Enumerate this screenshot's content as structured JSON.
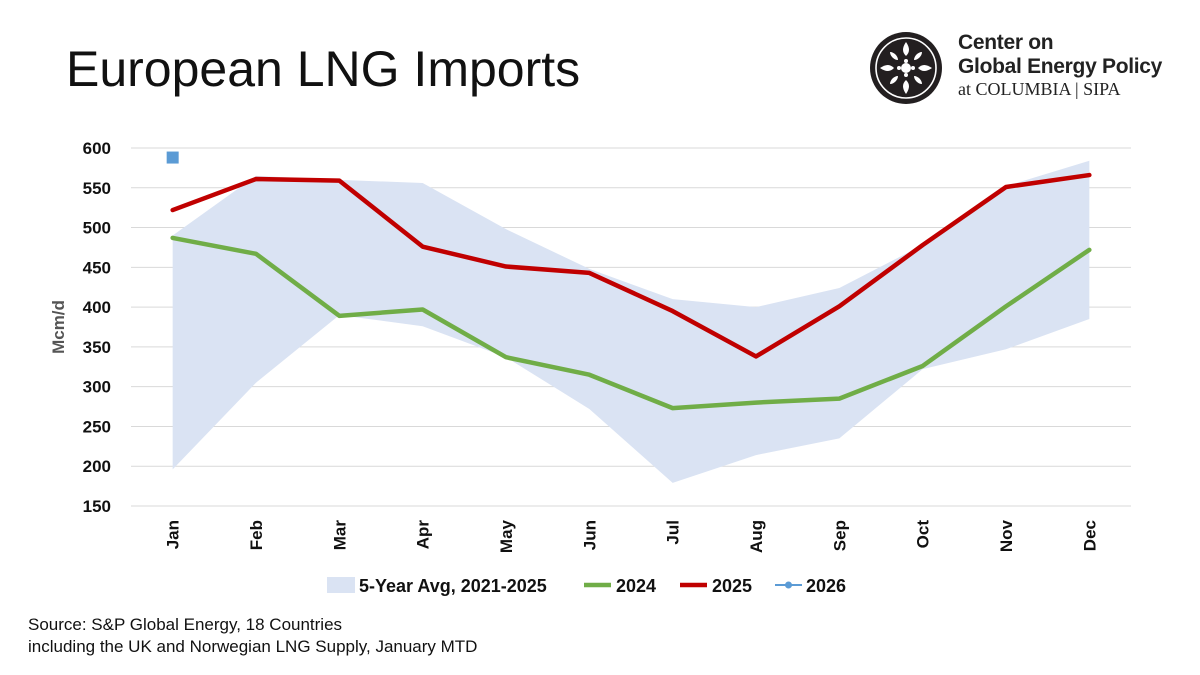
{
  "page": {
    "title": "European LNG Imports"
  },
  "logo": {
    "icon": "columbia-crown-emblem-icon",
    "line1": "Center on",
    "line2": "Global Energy Policy",
    "line3": "at COLUMBIA | SIPA"
  },
  "source": {
    "line1": "Source: S&P Global Energy, 18 Countries",
    "line2": "including the UK and Norwegian LNG Supply, January MTD"
  },
  "colors": {
    "band": "#dae3f3",
    "s2024": "#70ad47",
    "s2025": "#c00000",
    "s2026": "#5b9bd5",
    "grid": "#d9d9d9"
  },
  "chart_data": {
    "type": "line",
    "title": "European LNG Imports",
    "xlabel": "",
    "ylabel": "Mcm/d",
    "ylim": [
      150,
      600
    ],
    "yticks": [
      "150",
      "200",
      "250",
      "300",
      "350",
      "400",
      "450",
      "500",
      "550",
      "600"
    ],
    "categories": [
      "Jan",
      "Feb",
      "Mar",
      "Apr",
      "May",
      "Jun",
      "Jul",
      "Aug",
      "Sep",
      "Oct",
      "Nov",
      "Dec"
    ],
    "band": {
      "name": "5-Year Avg, 2021-2025",
      "lower": [
        196,
        305,
        390,
        376,
        337,
        272,
        179,
        214,
        235,
        322,
        347,
        385
      ],
      "upper": [
        490,
        565,
        560,
        556,
        498,
        448,
        410,
        400,
        424,
        478,
        552,
        584
      ]
    },
    "series": [
      {
        "name": "2024",
        "values": [
          487,
          467,
          389,
          397,
          337,
          315,
          273,
          280,
          285,
          326,
          401,
          472
        ]
      },
      {
        "name": "2025",
        "values": [
          522,
          561,
          559,
          476,
          451,
          443,
          395,
          338,
          401,
          478,
          551,
          566
        ]
      },
      {
        "name": "2026",
        "values": [
          588,
          null,
          null,
          null,
          null,
          null,
          null,
          null,
          null,
          null,
          null,
          null
        ]
      }
    ],
    "legend": [
      "5-Year Avg, 2021-2025",
      "2024",
      "2025",
      "2026"
    ],
    "legend_position": "bottom",
    "grid": true
  }
}
